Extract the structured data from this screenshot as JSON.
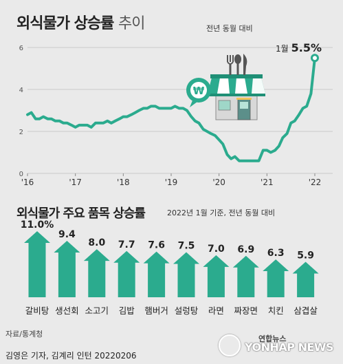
{
  "header": {
    "title_bold": "외식물가 상승률",
    "title_light": "추이",
    "unit": "전년 동월 대비"
  },
  "line_callout": {
    "label": "1월",
    "value": "5.5%"
  },
  "section2": {
    "title": "외식물가 주요 품목 상승률",
    "note": "2022년 1월 기준, 전년 동월 대비"
  },
  "footer": {
    "source": "자료/통계청",
    "credit": "김영은 기자, 김계리 인턴  20220206",
    "logo_ko": "연합뉴스",
    "logo_en": "YONHAP NEWS"
  },
  "colors": {
    "accent": "#2bab8e",
    "grid": "#c9c9c9",
    "background": "#eaeaea"
  },
  "icons": [
    "restaurant-store-icon",
    "won-currency-icon"
  ],
  "chart_data": [
    {
      "type": "line",
      "title": "외식물가 상승률 추이",
      "ylabel": "",
      "ylim": [
        0,
        6
      ],
      "yticks": [
        0,
        2,
        4,
        6
      ],
      "xlim": [
        2016.0,
        2022.0
      ],
      "xticks": [
        {
          "x": 2016,
          "label": "'16"
        },
        {
          "x": 2017,
          "label": "'17"
        },
        {
          "x": 2018,
          "label": "'18"
        },
        {
          "x": 2019,
          "label": "'19"
        },
        {
          "x": 2020,
          "label": "'20"
        },
        {
          "x": 2021,
          "label": "'21"
        },
        {
          "x": 2022,
          "label": "'22"
        }
      ],
      "grid": true,
      "series": [
        {
          "name": "",
          "points": [
            [
              2016.0,
              2.8
            ],
            [
              2016.08,
              2.9
            ],
            [
              2016.17,
              2.6
            ],
            [
              2016.25,
              2.6
            ],
            [
              2016.33,
              2.7
            ],
            [
              2016.42,
              2.6
            ],
            [
              2016.5,
              2.6
            ],
            [
              2016.58,
              2.5
            ],
            [
              2016.67,
              2.5
            ],
            [
              2016.75,
              2.4
            ],
            [
              2016.83,
              2.4
            ],
            [
              2016.92,
              2.3
            ],
            [
              2017.0,
              2.2
            ],
            [
              2017.08,
              2.3
            ],
            [
              2017.17,
              2.3
            ],
            [
              2017.25,
              2.3
            ],
            [
              2017.33,
              2.2
            ],
            [
              2017.42,
              2.4
            ],
            [
              2017.5,
              2.4
            ],
            [
              2017.58,
              2.4
            ],
            [
              2017.67,
              2.5
            ],
            [
              2017.75,
              2.4
            ],
            [
              2017.83,
              2.5
            ],
            [
              2017.92,
              2.6
            ],
            [
              2018.0,
              2.7
            ],
            [
              2018.08,
              2.7
            ],
            [
              2018.17,
              2.8
            ],
            [
              2018.25,
              2.9
            ],
            [
              2018.33,
              3.0
            ],
            [
              2018.42,
              3.1
            ],
            [
              2018.5,
              3.1
            ],
            [
              2018.58,
              3.2
            ],
            [
              2018.67,
              3.2
            ],
            [
              2018.75,
              3.1
            ],
            [
              2018.83,
              3.1
            ],
            [
              2018.92,
              3.1
            ],
            [
              2019.0,
              3.1
            ],
            [
              2019.08,
              3.2
            ],
            [
              2019.17,
              3.1
            ],
            [
              2019.25,
              3.1
            ],
            [
              2019.33,
              3.0
            ],
            [
              2019.42,
              2.7
            ],
            [
              2019.5,
              2.5
            ],
            [
              2019.58,
              2.4
            ],
            [
              2019.67,
              2.1
            ],
            [
              2019.75,
              2.0
            ],
            [
              2019.83,
              1.9
            ],
            [
              2019.92,
              1.8
            ],
            [
              2020.0,
              1.6
            ],
            [
              2020.08,
              1.4
            ],
            [
              2020.17,
              0.9
            ],
            [
              2020.25,
              0.7
            ],
            [
              2020.33,
              0.8
            ],
            [
              2020.42,
              0.6
            ],
            [
              2020.5,
              0.6
            ],
            [
              2020.58,
              0.6
            ],
            [
              2020.67,
              0.6
            ],
            [
              2020.75,
              0.6
            ],
            [
              2020.83,
              0.6
            ],
            [
              2020.92,
              1.1
            ],
            [
              2021.0,
              1.1
            ],
            [
              2021.08,
              1.0
            ],
            [
              2021.17,
              1.1
            ],
            [
              2021.25,
              1.3
            ],
            [
              2021.33,
              1.7
            ],
            [
              2021.42,
              1.9
            ],
            [
              2021.5,
              2.4
            ],
            [
              2021.58,
              2.5
            ],
            [
              2021.67,
              2.8
            ],
            [
              2021.75,
              3.1
            ],
            [
              2021.83,
              3.2
            ],
            [
              2021.92,
              3.8
            ],
            [
              2022.0,
              5.5
            ]
          ]
        }
      ]
    },
    {
      "type": "bar",
      "title": "외식물가 주요 품목 상승률",
      "categories": [
        "갈비탕",
        "생선회",
        "소고기",
        "김밥",
        "햄버거",
        "설렁탕",
        "라면",
        "짜장면",
        "치킨",
        "삼겹살"
      ],
      "values": [
        11.0,
        9.4,
        8.0,
        7.7,
        7.6,
        7.5,
        7.0,
        6.9,
        6.3,
        5.9
      ],
      "labels": [
        "11.0%",
        "9.4",
        "8.0",
        "7.7",
        "7.6",
        "7.5",
        "7.0",
        "6.9",
        "6.3",
        "5.9"
      ],
      "ylim": [
        0,
        11.0
      ]
    }
  ]
}
